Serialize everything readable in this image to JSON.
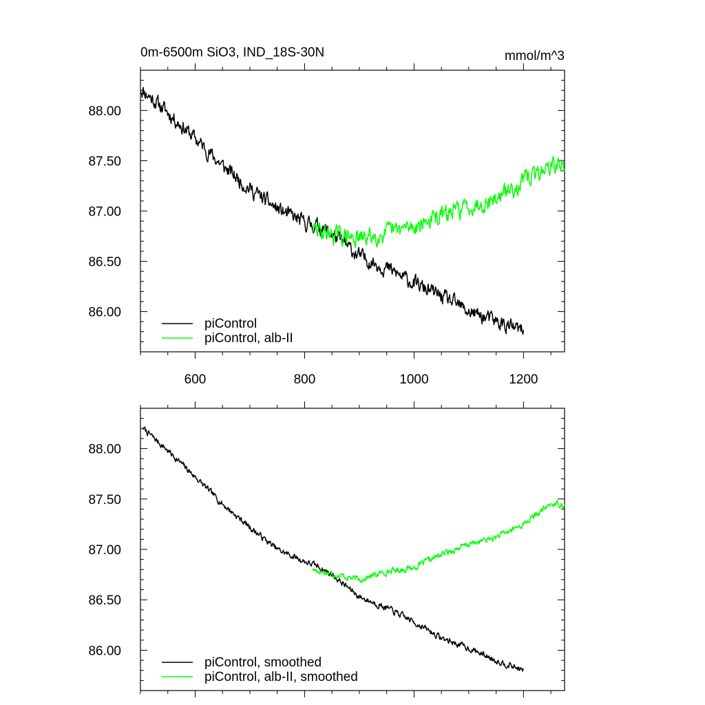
{
  "chart_data": {
    "type": "line",
    "title": "0m-6500m SiO3, IND_18S-30N",
    "units": "mmol/m^3",
    "xlim": [
      500,
      1275
    ],
    "ylim": [
      85.6,
      88.4
    ],
    "xticks": [
      600,
      800,
      1000,
      1200
    ],
    "xtick_labels": [
      "600",
      "800",
      "1000",
      "1200"
    ],
    "yticks": [
      86.0,
      86.5,
      87.0,
      87.5,
      88.0
    ],
    "ytick_labels": [
      "86.00",
      "86.50",
      "87.00",
      "87.50",
      "88.00"
    ],
    "colors": {
      "picontrol": "#000000",
      "alb": "#00ff00"
    },
    "panels": [
      {
        "name": "raw",
        "show_xtick_labels": true,
        "legend_position": "bottom-left",
        "series": [
          {
            "name": "piControl",
            "color": "#000000",
            "noise": 0.06,
            "seed": 11,
            "x_start": 500,
            "x_end": 1200,
            "knots_x": [
              500,
              550,
              600,
              650,
              700,
              750,
              800,
              825,
              850,
              900,
              950,
              1000,
              1050,
              1100,
              1150,
              1200
            ],
            "knots_y": [
              88.22,
              87.98,
              87.72,
              87.45,
              87.22,
              87.02,
              86.88,
              86.85,
              86.77,
              86.55,
              86.43,
              86.28,
              86.15,
              86.0,
              85.9,
              85.8
            ]
          },
          {
            "name": "piControl, alb-II",
            "color": "#00ff00",
            "noise": 0.07,
            "seed": 29,
            "x_start": 815,
            "x_end": 1275,
            "knots_x": [
              815,
              850,
              900,
              950,
              1000,
              1050,
              1100,
              1150,
              1200,
              1250,
              1275
            ],
            "knots_y": [
              86.82,
              86.77,
              86.72,
              86.78,
              86.85,
              86.95,
              87.05,
              87.12,
              87.3,
              87.45,
              87.45
            ]
          }
        ]
      },
      {
        "name": "smoothed",
        "show_xtick_labels": false,
        "legend_position": "bottom-left",
        "series": [
          {
            "name": "piControl, smoothed",
            "color": "#000000",
            "noise": 0.025,
            "seed": 7,
            "x_start": 505,
            "x_end": 1200,
            "knots_x": [
              505,
              550,
              600,
              650,
              700,
              750,
              800,
              825,
              850,
              900,
              950,
              1000,
              1050,
              1100,
              1150,
              1200
            ],
            "knots_y": [
              88.2,
              87.98,
              87.72,
              87.45,
              87.22,
              87.0,
              86.88,
              86.83,
              86.75,
              86.53,
              86.42,
              86.28,
              86.12,
              86.02,
              85.9,
              85.8
            ]
          },
          {
            "name": "piControl, alb-II, smoothed",
            "color": "#00ff00",
            "noise": 0.025,
            "seed": 17,
            "x_start": 815,
            "x_end": 1275,
            "knots_x": [
              815,
              850,
              900,
              950,
              1000,
              1050,
              1100,
              1150,
              1200,
              1250,
              1275
            ],
            "knots_y": [
              86.8,
              86.76,
              86.7,
              86.78,
              86.82,
              86.95,
              87.05,
              87.12,
              87.25,
              87.45,
              87.45
            ]
          }
        ]
      }
    ]
  }
}
